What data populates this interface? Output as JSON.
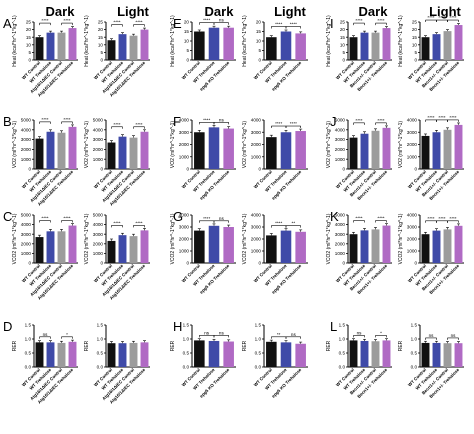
{
  "colors": {
    "wt_control": "#111111",
    "wt_trehalose": "#3f4aa8",
    "mutant_control": "#9c9c9c",
    "mutant_trehalose": "#b06ac4",
    "axis": "#000000"
  },
  "column_headers": [
    {
      "dark": "Dark",
      "light": "Light"
    },
    {
      "dark": "Dark",
      "light": "Light"
    },
    {
      "dark": "Dark",
      "light": "Light"
    }
  ],
  "chart_data": [
    {
      "type": "bar",
      "panel": "A",
      "period": "Dark",
      "ylabel": "Heat (kcal*hr^-1*kg^-1)",
      "ylim": [
        0,
        25
      ],
      "yticks": [
        0,
        5,
        10,
        15,
        20,
        25
      ],
      "categories": [
        "WT Control",
        "WT Trehalose",
        "Atg16l1^ΔIEC Control",
        "Atg16l1^ΔIEC Trehalose"
      ],
      "values": [
        15,
        18,
        18,
        21
      ],
      "significance": [
        {
          "from": 0,
          "to": 1,
          "text": "****"
        },
        {
          "from": 2,
          "to": 3,
          "text": "****"
        }
      ]
    },
    {
      "type": "bar",
      "panel": "A",
      "period": "Light",
      "ylabel": "Heat (kcal*hr^-1*kg^-1)",
      "ylim": [
        0,
        25
      ],
      "yticks": [
        0,
        5,
        10,
        15,
        20,
        25
      ],
      "categories": [
        "WT Control",
        "WT Trehalose",
        "Atg16l1^ΔIEC Control",
        "Atg16l1^ΔIEC Trehalose"
      ],
      "values": [
        13,
        17,
        16,
        20
      ],
      "significance": [
        {
          "from": 0,
          "to": 1,
          "text": "****"
        },
        {
          "from": 2,
          "to": 3,
          "text": "****"
        }
      ]
    },
    {
      "type": "bar",
      "panel": "E",
      "period": "Dark",
      "ylabel": "Heat (kcal*hr^-1*kg^-1)",
      "ylim": [
        0,
        20
      ],
      "yticks": [
        0,
        5,
        10,
        15,
        20
      ],
      "categories": [
        "WT Control",
        "WT Trehalose",
        "epg5 KO Trehalose"
      ],
      "values": [
        15,
        17,
        17
      ],
      "significance": [
        {
          "from": 0,
          "to": 1,
          "text": "****"
        },
        {
          "from": 1,
          "to": 2,
          "text": "ns"
        }
      ]
    },
    {
      "type": "bar",
      "panel": "E",
      "period": "Light",
      "ylabel": "Heat (kcal*hr^-1*kg^-1)",
      "ylim": [
        0,
        20
      ],
      "yticks": [
        0,
        5,
        10,
        15,
        20
      ],
      "categories": [
        "WT Control",
        "WT Trehalose",
        "epg5 KO Trehalose"
      ],
      "values": [
        12,
        15,
        14
      ],
      "significance": [
        {
          "from": 0,
          "to": 1,
          "text": "****"
        },
        {
          "from": 1,
          "to": 2,
          "text": "****"
        }
      ]
    },
    {
      "type": "bar",
      "panel": "I",
      "period": "Dark",
      "ylabel": "Heat (kcal*hr^-1*kg^-1)",
      "ylim": [
        0,
        25
      ],
      "yticks": [
        0,
        5,
        10,
        15,
        20,
        25
      ],
      "categories": [
        "WT Control",
        "WT Trehalose",
        "Becn1^+/- Control",
        "Becn1^+/- Trehalose"
      ],
      "values": [
        15,
        18,
        18,
        21
      ],
      "significance": [
        {
          "from": 0,
          "to": 1,
          "text": "****"
        },
        {
          "from": 2,
          "to": 3,
          "text": "****"
        }
      ]
    },
    {
      "type": "bar",
      "panel": "I",
      "period": "Light",
      "ylabel": "Heat (kcal*hr^-1*kg^-1)",
      "ylim": [
        0,
        25
      ],
      "yticks": [
        0,
        5,
        10,
        15,
        20,
        25
      ],
      "categories": [
        "WT Control",
        "WT Trehalose",
        "Becn1^+/- Control",
        "Becn1^+/- Trehalose"
      ],
      "values": [
        15,
        17,
        19,
        23
      ],
      "significance": [
        {
          "from": 0,
          "to": 1,
          "text": "****"
        },
        {
          "from": 1,
          "to": 2,
          "text": "****"
        },
        {
          "from": 2,
          "to": 3,
          "text": "****"
        }
      ]
    },
    {
      "type": "bar",
      "panel": "B",
      "period": "Dark",
      "ylabel": "VO2 (ml*hr^-1*kg^-1)",
      "ylim": [
        0,
        5000
      ],
      "yticks": [
        0,
        1000,
        2000,
        3000,
        4000,
        5000
      ],
      "categories": [
        "WT Control",
        "WT Trehalose",
        "Atg16l1^ΔIEC Control",
        "Atg16l1^ΔIEC Trehalose"
      ],
      "values": [
        3100,
        3800,
        3700,
        4300
      ],
      "significance": [
        {
          "from": 0,
          "to": 1,
          "text": "****"
        },
        {
          "from": 2,
          "to": 3,
          "text": "****"
        }
      ]
    },
    {
      "type": "bar",
      "panel": "B",
      "period": "Light",
      "ylabel": "VO2 (ml*hr^-1*kg^-1)",
      "ylim": [
        0,
        5000
      ],
      "yticks": [
        0,
        1000,
        2000,
        3000,
        4000,
        5000
      ],
      "categories": [
        "WT Control",
        "WT Trehalose",
        "Atg16l1^ΔIEC Control",
        "Atg16l1^ΔIEC Trehalose"
      ],
      "values": [
        2700,
        3300,
        3200,
        3800
      ],
      "significance": [
        {
          "from": 0,
          "to": 1,
          "text": "****"
        },
        {
          "from": 2,
          "to": 3,
          "text": "****"
        }
      ]
    },
    {
      "type": "bar",
      "panel": "F",
      "period": "Dark",
      "ylabel": "VO2 (ml*hr^-1*kg^-1)",
      "ylim": [
        0,
        4000
      ],
      "yticks": [
        0,
        1000,
        2000,
        3000,
        4000
      ],
      "categories": [
        "WT Control",
        "WT Trehalose",
        "epg5 KO Trehalose"
      ],
      "values": [
        3000,
        3400,
        3300
      ],
      "significance": [
        {
          "from": 0,
          "to": 1,
          "text": "****"
        },
        {
          "from": 1,
          "to": 2,
          "text": "ns"
        }
      ]
    },
    {
      "type": "bar",
      "panel": "F",
      "period": "Light",
      "ylabel": "VO2 (ml*hr^-1*kg^-1)",
      "ylim": [
        0,
        4000
      ],
      "yticks": [
        0,
        1000,
        2000,
        3000,
        4000
      ],
      "categories": [
        "WT Control",
        "WT Trehalose",
        "epg5 KO Trehalose"
      ],
      "values": [
        2600,
        3000,
        3100
      ],
      "significance": [
        {
          "from": 0,
          "to": 1,
          "text": "****"
        },
        {
          "from": 1,
          "to": 2,
          "text": "****"
        }
      ]
    },
    {
      "type": "bar",
      "panel": "J",
      "period": "Dark",
      "ylabel": "VO2 (ml*hr^-1*kg^-1)",
      "ylim": [
        0,
        5000
      ],
      "yticks": [
        0,
        1000,
        2000,
        3000,
        4000,
        5000
      ],
      "categories": [
        "WT Control",
        "WT Trehalose",
        "Becn1^+/- Control",
        "Becn1^+/- Trehalose"
      ],
      "values": [
        3200,
        3600,
        3900,
        4200
      ],
      "significance": [
        {
          "from": 0,
          "to": 1,
          "text": "****"
        },
        {
          "from": 2,
          "to": 3,
          "text": "****"
        }
      ]
    },
    {
      "type": "bar",
      "panel": "J",
      "period": "Light",
      "ylabel": "VO2 (ml*hr^-1*kg^-1)",
      "ylim": [
        0,
        4000
      ],
      "yticks": [
        0,
        1000,
        2000,
        3000,
        4000
      ],
      "categories": [
        "WT Control",
        "WT Trehalose",
        "Becn1^+/- Control",
        "Becn1^+/- Trehalose"
      ],
      "values": [
        2700,
        3000,
        3200,
        3600
      ],
      "significance": [
        {
          "from": 0,
          "to": 1,
          "text": "****"
        },
        {
          "from": 1,
          "to": 2,
          "text": "****"
        },
        {
          "from": 2,
          "to": 3,
          "text": "****"
        }
      ]
    },
    {
      "type": "bar",
      "panel": "C",
      "period": "Dark",
      "ylabel": "VCO2 (ml*hr^-1*kg^-1)",
      "ylim": [
        0,
        5000
      ],
      "yticks": [
        0,
        1000,
        2000,
        3000,
        4000,
        5000
      ],
      "categories": [
        "WT Control",
        "WT Trehalose",
        "Atg16l1^ΔIEC Control",
        "Atg16l1^ΔIEC Trehalose"
      ],
      "values": [
        2700,
        3300,
        3300,
        3900
      ],
      "significance": [
        {
          "from": 0,
          "to": 1,
          "text": "****"
        },
        {
          "from": 2,
          "to": 3,
          "text": "****"
        }
      ]
    },
    {
      "type": "bar",
      "panel": "C",
      "period": "Light",
      "ylabel": "VCO2 (ml*hr^-1*kg^-1)",
      "ylim": [
        0,
        5000
      ],
      "yticks": [
        0,
        1000,
        2000,
        3000,
        4000,
        5000
      ],
      "categories": [
        "WT Control",
        "WT Trehalose",
        "Atg16l1^ΔIEC Control",
        "Atg16l1^ΔIEC Trehalose"
      ],
      "values": [
        2300,
        2900,
        2800,
        3400
      ],
      "significance": [
        {
          "from": 0,
          "to": 1,
          "text": "****"
        },
        {
          "from": 2,
          "to": 3,
          "text": "****"
        }
      ]
    },
    {
      "type": "bar",
      "panel": "G",
      "period": "Dark",
      "ylabel": "VCO2 (ml*hr^-1*kg^-1)",
      "ylim": [
        0,
        4000
      ],
      "yticks": [
        0,
        1000,
        2000,
        3000,
        4000
      ],
      "categories": [
        "WT Control",
        "WT Trehalose",
        "epg5 KO Trehalose"
      ],
      "values": [
        2700,
        3100,
        3000
      ],
      "significance": [
        {
          "from": 0,
          "to": 1,
          "text": "****"
        },
        {
          "from": 1,
          "to": 2,
          "text": "ns"
        }
      ]
    },
    {
      "type": "bar",
      "panel": "G",
      "period": "Light",
      "ylabel": "VCO2 (ml*hr^-1*kg^-1)",
      "ylim": [
        0,
        4000
      ],
      "yticks": [
        0,
        1000,
        2000,
        3000,
        4000
      ],
      "categories": [
        "WT Control",
        "WT Trehalose",
        "epg5 KO Trehalose"
      ],
      "values": [
        2300,
        2700,
        2600
      ],
      "significance": [
        {
          "from": 0,
          "to": 1,
          "text": "****"
        },
        {
          "from": 1,
          "to": 2,
          "text": "**"
        }
      ]
    },
    {
      "type": "bar",
      "panel": "K",
      "period": "Dark",
      "ylabel": "VCO2 (ml*hr^-1*kg^-1)",
      "ylim": [
        0,
        5000
      ],
      "yticks": [
        0,
        1000,
        2000,
        3000,
        4000,
        5000
      ],
      "categories": [
        "WT Control",
        "WT Trehalose",
        "Becn1^+/- Control",
        "Becn1^+/- Trehalose"
      ],
      "values": [
        3000,
        3400,
        3500,
        3900
      ],
      "significance": [
        {
          "from": 0,
          "to": 1,
          "text": "****"
        },
        {
          "from": 2,
          "to": 3,
          "text": "****"
        }
      ]
    },
    {
      "type": "bar",
      "panel": "K",
      "period": "Light",
      "ylabel": "VCO2 (ml*hr^-1*kg^-1)",
      "ylim": [
        0,
        4000
      ],
      "yticks": [
        0,
        1000,
        2000,
        3000,
        4000
      ],
      "categories": [
        "WT Control",
        "WT Trehalose",
        "Becn1^+/- Control",
        "Becn1^+/- Trehalose"
      ],
      "values": [
        2400,
        2700,
        2800,
        3100
      ],
      "significance": [
        {
          "from": 0,
          "to": 1,
          "text": "****"
        },
        {
          "from": 1,
          "to": 2,
          "text": "****"
        },
        {
          "from": 2,
          "to": 3,
          "text": "****"
        }
      ]
    },
    {
      "type": "bar",
      "panel": "D",
      "period": "Dark",
      "ylabel": "RER",
      "ylim": [
        0,
        1.5
      ],
      "yticks": [
        0,
        0.5,
        1.0,
        1.5
      ],
      "categories": [
        "WT Control",
        "WT Trehalose",
        "Atg16l1^ΔIEC Control",
        "Atg16l1^ΔIEC Trehalose"
      ],
      "values": [
        0.88,
        0.88,
        0.86,
        0.9
      ],
      "significance": [
        {
          "from": 0,
          "to": 1,
          "text": "ns"
        },
        {
          "from": 2,
          "to": 3,
          "text": "*"
        }
      ]
    },
    {
      "type": "bar",
      "panel": "D",
      "period": "Light",
      "ylabel": "RER",
      "ylim": [
        0,
        1.5
      ],
      "yticks": [
        0,
        0.5,
        1.0,
        1.5
      ],
      "categories": [
        "WT Control",
        "WT Trehalose",
        "Atg16l1^ΔIEC Control",
        "Atg16l1^ΔIEC Trehalose"
      ],
      "values": [
        0.85,
        0.85,
        0.86,
        0.88
      ],
      "significance": []
    },
    {
      "type": "bar",
      "panel": "H",
      "period": "Dark",
      "ylabel": "RER",
      "ylim": [
        0,
        1.5
      ],
      "yticks": [
        0,
        0.5,
        1.0,
        1.5
      ],
      "categories": [
        "WT Control",
        "WT Trehalose",
        "epg5 KO Trehalose"
      ],
      "values": [
        0.95,
        0.93,
        0.91
      ],
      "significance": [
        {
          "from": 0,
          "to": 1,
          "text": "ns"
        },
        {
          "from": 1,
          "to": 2,
          "text": "ns"
        }
      ]
    },
    {
      "type": "bar",
      "panel": "H",
      "period": "Light",
      "ylabel": "RER",
      "ylim": [
        0,
        1.5
      ],
      "yticks": [
        0,
        0.5,
        1.0,
        1.5
      ],
      "categories": [
        "WT Control",
        "WT Trehalose",
        "epg5 KO Trehalose"
      ],
      "values": [
        0.9,
        0.88,
        0.83
      ],
      "significance": [
        {
          "from": 0,
          "to": 1,
          "text": "**"
        },
        {
          "from": 1,
          "to": 2,
          "text": "ns"
        }
      ]
    },
    {
      "type": "bar",
      "panel": "L",
      "period": "Dark",
      "ylabel": "RER",
      "ylim": [
        0,
        1.5
      ],
      "yticks": [
        0,
        0.5,
        1.0,
        1.5
      ],
      "categories": [
        "WT Control",
        "WT Trehalose",
        "Becn1^+/- Control",
        "Becn1^+/- Trehalose"
      ],
      "values": [
        0.95,
        0.93,
        0.92,
        0.95
      ],
      "significance": [
        {
          "from": 0,
          "to": 1,
          "text": "ns"
        },
        {
          "from": 2,
          "to": 3,
          "text": "*"
        }
      ]
    },
    {
      "type": "bar",
      "panel": "L",
      "period": "Light",
      "ylabel": "RER",
      "ylim": [
        0,
        1.5
      ],
      "yticks": [
        0,
        0.5,
        1.0,
        1.5
      ],
      "categories": [
        "WT Control",
        "WT Trehalose",
        "Becn1^+/- Control",
        "Becn1^+/- Trehalose"
      ],
      "values": [
        0.86,
        0.86,
        0.85,
        0.85
      ],
      "significance": [
        {
          "from": 0,
          "to": 1,
          "text": "ns"
        },
        {
          "from": 2,
          "to": 3,
          "text": "ns"
        }
      ]
    }
  ]
}
